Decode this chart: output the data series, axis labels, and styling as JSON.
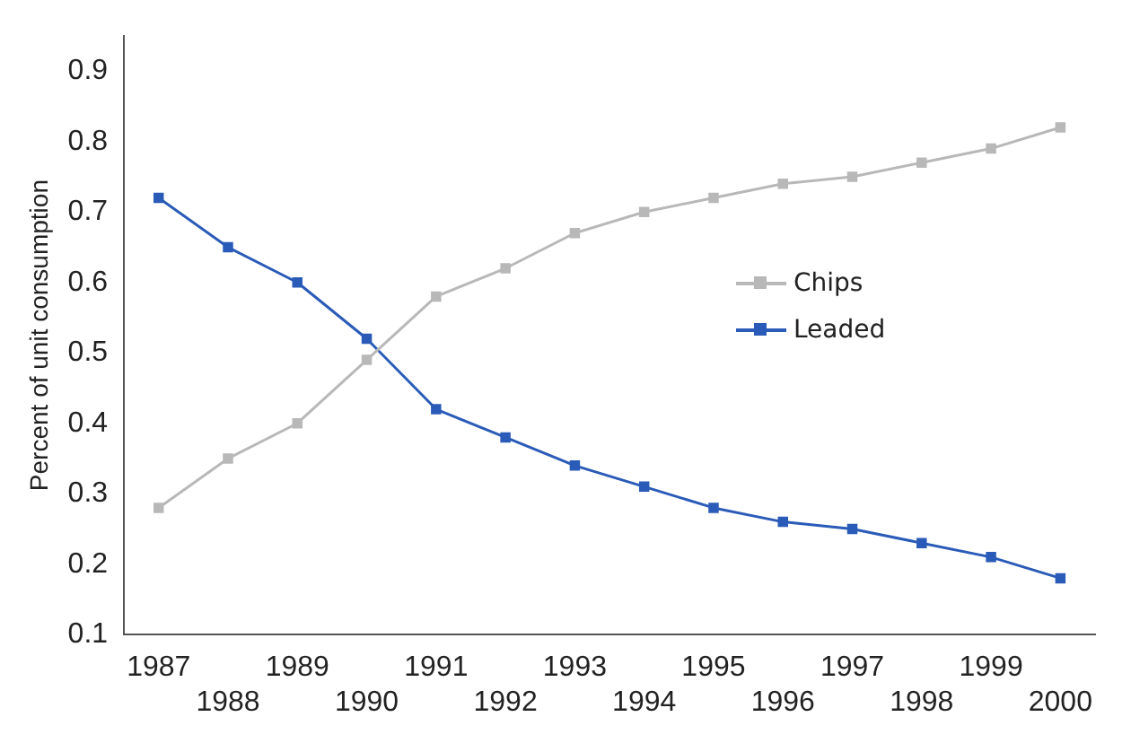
{
  "chart_data": {
    "type": "line",
    "ylabel": "Percent of unit consumption",
    "categories": [
      "1987",
      "1988",
      "1989",
      "1990",
      "1991",
      "1992",
      "1993",
      "1994",
      "1995",
      "1996",
      "1997",
      "1998",
      "1999",
      "2000"
    ],
    "series": [
      {
        "name": "Chips",
        "color": "#b8b8b8",
        "values": [
          0.28,
          0.35,
          0.4,
          0.49,
          0.58,
          0.62,
          0.67,
          0.7,
          0.72,
          0.74,
          0.75,
          0.77,
          0.79,
          0.82
        ]
      },
      {
        "name": "Leaded",
        "color": "#2a5bb8",
        "values": [
          0.72,
          0.65,
          0.6,
          0.52,
          0.42,
          0.38,
          0.34,
          0.31,
          0.28,
          0.26,
          0.25,
          0.23,
          0.21,
          0.18
        ]
      }
    ],
    "ylim": [
      0.1,
      0.95
    ],
    "yticks": [
      0.1,
      0.2,
      0.3,
      0.4,
      0.5,
      0.6,
      0.7,
      0.8,
      0.9
    ],
    "grid": false,
    "legend": "right",
    "marker": "square",
    "line_style": "solid"
  }
}
